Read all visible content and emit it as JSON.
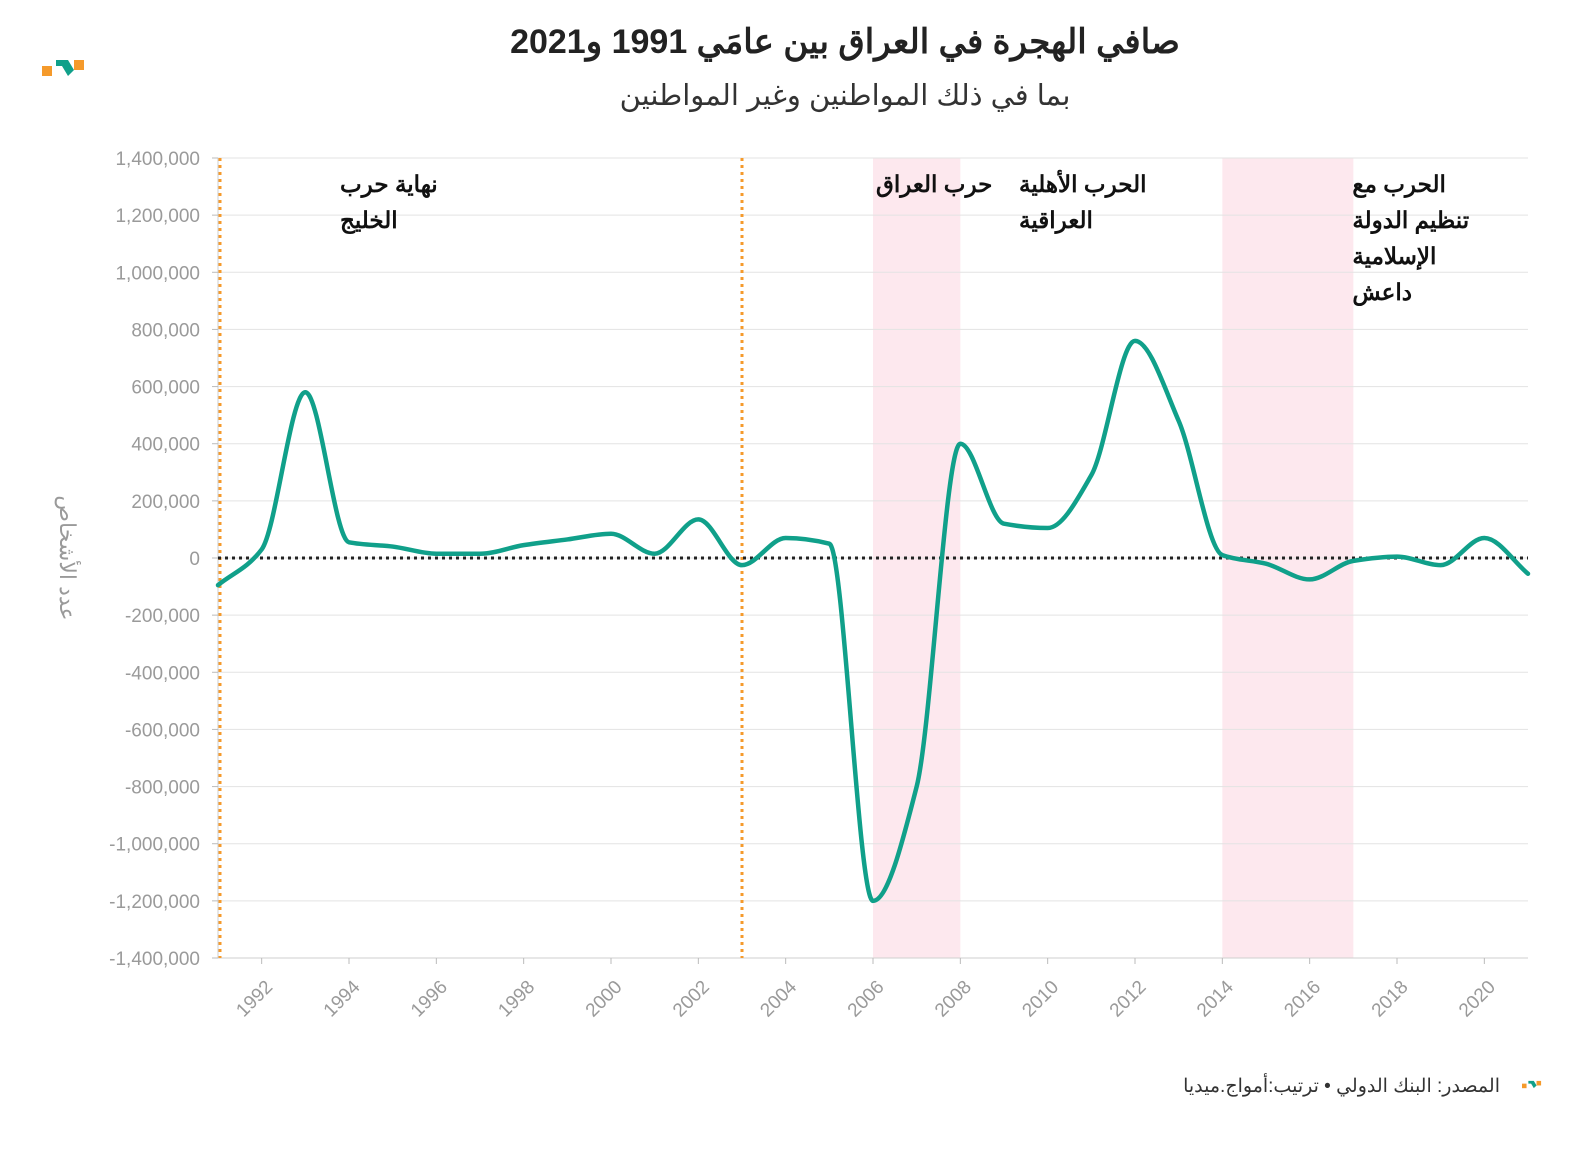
{
  "header": {
    "title": "صافي الهجرة في العراق بين عامَي 1991 و2021",
    "subtitle": "بما في ذلك المواطنين وغير المواطنين"
  },
  "footer": {
    "source": "المصدر: البنك الدولي • ترتيب:أمواج.ميديا"
  },
  "colors": {
    "line": "#10a08a",
    "event_line": "#f59a2b",
    "shade": "#fde8ee",
    "logo_orange": "#f59a2b",
    "logo_green": "#10a08a"
  },
  "chart_data": {
    "type": "line",
    "title": "صافي الهجرة في العراق بين عامَي 1991 و2021",
    "subtitle": "بما في ذلك المواطنين وغير المواطنين",
    "xlabel": "",
    "ylabel": "عدد الأشخاص",
    "xlim": [
      1991,
      2021
    ],
    "ylim": [
      -1400000,
      1400000
    ],
    "y_ticks": [
      -1400000,
      -1200000,
      -1000000,
      -800000,
      -600000,
      -400000,
      -200000,
      0,
      200000,
      400000,
      600000,
      800000,
      1000000,
      1200000,
      1400000
    ],
    "y_tick_labels": [
      "-1,400,000",
      "-1,200,000",
      "-1,000,000",
      "-800,000",
      "-600,000",
      "-400,000",
      "-200,000",
      "0",
      "200,000",
      "400,000",
      "600,000",
      "800,000",
      "1,000,000",
      "1,200,000",
      "1,400,000"
    ],
    "x_ticks": [
      1992,
      1994,
      1996,
      1998,
      2000,
      2002,
      2004,
      2006,
      2008,
      2010,
      2012,
      2014,
      2016,
      2018,
      2020
    ],
    "x_tick_labels": [
      "1992",
      "1994",
      "1996",
      "1998",
      "2000",
      "2002",
      "2004",
      "2006",
      "2008",
      "2010",
      "2012",
      "2014",
      "2016",
      "2018",
      "2020"
    ],
    "series": [
      {
        "name": "صافي الهجرة",
        "x": [
          1991,
          1992,
          1993,
          1994,
          1995,
          1996,
          1997,
          1998,
          1999,
          2000,
          2001,
          2002,
          2003,
          2004,
          2005,
          2006,
          2007,
          2008,
          2009,
          2010,
          2011,
          2012,
          2013,
          2014,
          2015,
          2016,
          2017,
          2018,
          2019,
          2020,
          2021
        ],
        "values": [
          -95000,
          30000,
          580000,
          55000,
          40000,
          15000,
          15000,
          45000,
          65000,
          85000,
          15000,
          135000,
          -25000,
          70000,
          50000,
          -1200000,
          -800000,
          400000,
          120000,
          105000,
          290000,
          760000,
          480000,
          10000,
          -20000,
          -75000,
          -10000,
          5000,
          -25000,
          70000,
          -55000
        ]
      }
    ],
    "event_lines": [
      {
        "x": 1991,
        "label": "نهاية حرب الخليج"
      },
      {
        "x": 2003,
        "label": "حرب العراق"
      }
    ],
    "shaded_periods": [
      {
        "start": 2006,
        "end": 2008,
        "label": "الحرب الأهلية العراقية"
      },
      {
        "start": 2014,
        "end": 2017,
        "label": "الحرب مع تنظيم الدولة الإسلامية داعش"
      }
    ],
    "annotations": [
      {
        "lines": [
          "نهاية حرب",
          "الخليج"
        ],
        "x": 1991
      },
      {
        "lines": [
          "حرب العراق"
        ],
        "x": 2003
      },
      {
        "lines": [
          "الحرب الأهلية",
          "العراقية"
        ],
        "x": 2006
      },
      {
        "lines": [
          "الحرب مع",
          "تنظيم الدولة",
          "الإسلامية",
          "داعش"
        ],
        "x": 2014
      }
    ]
  }
}
